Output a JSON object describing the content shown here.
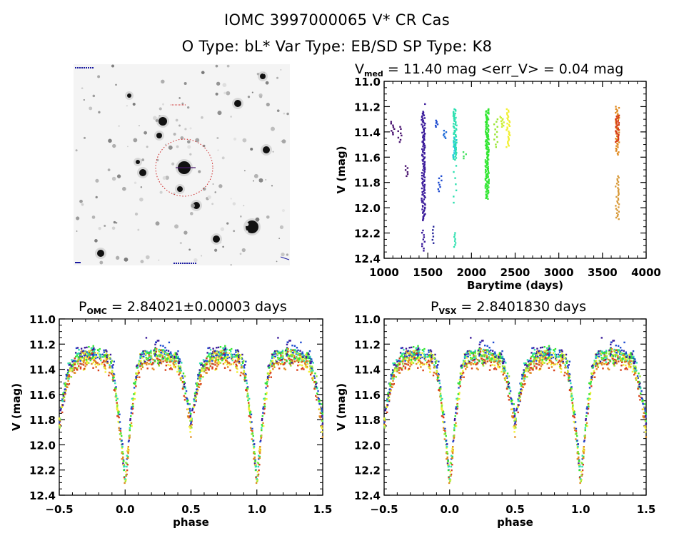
{
  "header": {
    "title_line1": "IOMC 3997000065    V* CR Cas",
    "title_line2": "O Type: bL*  Var Type: EB/SD  SP Type: K8"
  },
  "image_panel": {
    "description": "sky finder chart, inverted grayscale",
    "target_marker": "red dotted circle with crosshair",
    "marker_color": "#cc2222",
    "crosshair_color": "#4b1a6e"
  },
  "chart_data": [
    {
      "id": "timeseries",
      "type": "scatter",
      "title_main": "V",
      "title_sub": "med",
      "title_rest": " = 11.40 mag <err_V> = 0.04 mag",
      "xlabel": "Barytime (days)",
      "ylabel": "V (mag)",
      "xlim": [
        1000,
        4000
      ],
      "ylim": [
        12.4,
        11.0
      ],
      "y_inverted": true,
      "xticks": [
        1000,
        1500,
        2000,
        2500,
        3000,
        3500,
        4000
      ],
      "xtick_labels": [
        "1000",
        "1500",
        "2000",
        "2500",
        "3000",
        "3500",
        "4000"
      ],
      "yticks": [
        11.0,
        11.2,
        11.4,
        11.6,
        11.8,
        12.0,
        12.2,
        12.4
      ],
      "ytick_labels": [
        "11.0",
        "11.2",
        "11.4",
        "11.6",
        "11.8",
        "12.0",
        "12.2",
        "12.4"
      ],
      "grid": false,
      "segments": [
        {
          "t": 1100,
          "vmin": 11.32,
          "vmax": 11.42,
          "color": "#4a1470",
          "density": 8
        },
        {
          "t": 1180,
          "vmin": 11.36,
          "vmax": 11.48,
          "color": "#4a1470",
          "density": 8
        },
        {
          "t": 1250,
          "vmin": 11.67,
          "vmax": 11.75,
          "color": "#4a1470",
          "density": 6
        },
        {
          "t": 1450,
          "vmin": 11.24,
          "vmax": 12.1,
          "color": "#3a1a9a",
          "density": 120
        },
        {
          "t": 1450,
          "vmin": 11.18,
          "vmax": 11.19,
          "color": "#3a1a9a",
          "density": 1
        },
        {
          "t": 1450,
          "vmin": 12.18,
          "vmax": 12.34,
          "color": "#3a1a9a",
          "density": 10
        },
        {
          "t": 1560,
          "vmin": 12.15,
          "vmax": 12.28,
          "color": "#2b2a9c",
          "density": 6
        },
        {
          "t": 1610,
          "vmin": 11.31,
          "vmax": 11.36,
          "color": "#1e4bd0",
          "density": 6
        },
        {
          "t": 1640,
          "vmin": 11.75,
          "vmax": 11.87,
          "color": "#1e4bd0",
          "density": 8
        },
        {
          "t": 1700,
          "vmin": 11.39,
          "vmax": 11.45,
          "color": "#1e6bd8",
          "density": 6
        },
        {
          "t": 1810,
          "vmin": 11.22,
          "vmax": 11.62,
          "color": "#2ee0b0",
          "density": 60
        },
        {
          "t": 1810,
          "vmin": 11.62,
          "vmax": 11.96,
          "color": "#2ee0b0",
          "density": 8
        },
        {
          "t": 1810,
          "vmin": 12.2,
          "vmax": 12.31,
          "color": "#2ee0b0",
          "density": 8
        },
        {
          "t": 1810,
          "vmin": 11.45,
          "vmax": 11.6,
          "color": "#22c8e0",
          "density": 10
        },
        {
          "t": 1920,
          "vmin": 11.56,
          "vmax": 11.61,
          "color": "#44e060",
          "density": 4
        },
        {
          "t": 2180,
          "vmin": 11.22,
          "vmax": 11.93,
          "color": "#33e633",
          "density": 140
        },
        {
          "t": 2280,
          "vmin": 11.3,
          "vmax": 11.52,
          "color": "#99e633",
          "density": 12
        },
        {
          "t": 2350,
          "vmin": 11.28,
          "vmax": 11.36,
          "color": "#ccee33",
          "density": 10
        },
        {
          "t": 2420,
          "vmin": 11.22,
          "vmax": 11.52,
          "color": "#f2f033",
          "density": 30
        },
        {
          "t": 3670,
          "vmin": 11.2,
          "vmax": 11.58,
          "color": "#e08a20",
          "density": 40
        },
        {
          "t": 3670,
          "vmin": 11.27,
          "vmax": 11.48,
          "color": "#d8401a",
          "density": 30
        },
        {
          "t": 3670,
          "vmin": 11.75,
          "vmax": 12.09,
          "color": "#d89a3a",
          "density": 30
        }
      ]
    },
    {
      "id": "phase_omc",
      "type": "scatter",
      "title_main": "P",
      "title_sub": "OMC",
      "title_rest": " = 2.84021±0.00003 days",
      "period_days": 2.84021,
      "period_err_days": 3e-05,
      "xlabel": "phase",
      "ylabel": "V (mag)",
      "xlim": [
        -0.5,
        1.5
      ],
      "ylim": [
        12.4,
        11.0
      ],
      "y_inverted": true,
      "xticks": [
        -0.5,
        0.0,
        0.5,
        1.0,
        1.5
      ],
      "xtick_labels": [
        "−0.5",
        "0.0",
        "0.5",
        "1.0",
        "1.5"
      ],
      "yticks": [
        11.0,
        11.2,
        11.4,
        11.6,
        11.8,
        12.0,
        12.2,
        12.4
      ],
      "ytick_labels": [
        "11.0",
        "11.2",
        "11.4",
        "11.6",
        "11.8",
        "12.0",
        "12.2",
        "12.4"
      ],
      "grid": false,
      "light_curve_model": {
        "max_mag": 11.32,
        "primary_min_phase": 0.0,
        "primary_min_mag": 12.25,
        "secondary_min_phase": 0.5,
        "secondary_min_mag": 11.8,
        "scatter_mag": 0.06
      }
    },
    {
      "id": "phase_vsx",
      "type": "scatter",
      "title_main": "P",
      "title_sub": "VSX",
      "title_rest": " = 2.8401830 days",
      "period_days": 2.840183,
      "xlabel": "phase",
      "ylabel": "V (mag)",
      "xlim": [
        -0.5,
        1.5
      ],
      "ylim": [
        12.4,
        11.0
      ],
      "y_inverted": true,
      "xticks": [
        -0.5,
        0.0,
        0.5,
        1.0,
        1.5
      ],
      "xtick_labels": [
        "−0.5",
        "0.0",
        "0.5",
        "1.0",
        "1.5"
      ],
      "yticks": [
        11.0,
        11.2,
        11.4,
        11.6,
        11.8,
        12.0,
        12.2,
        12.4
      ],
      "ytick_labels": [
        "11.0",
        "11.2",
        "11.4",
        "11.6",
        "11.8",
        "12.0",
        "12.2",
        "12.4"
      ],
      "grid": false,
      "light_curve_model": {
        "max_mag": 11.32,
        "primary_min_phase": 0.0,
        "primary_min_mag": 12.25,
        "secondary_min_phase": 0.5,
        "secondary_min_mag": 11.8,
        "scatter_mag": 0.06
      }
    }
  ],
  "season_colors": [
    "#3a1a9a",
    "#1e4bd0",
    "#2ee0b0",
    "#33e633",
    "#99e633",
    "#f2f033",
    "#e08a20",
    "#d8401a"
  ]
}
